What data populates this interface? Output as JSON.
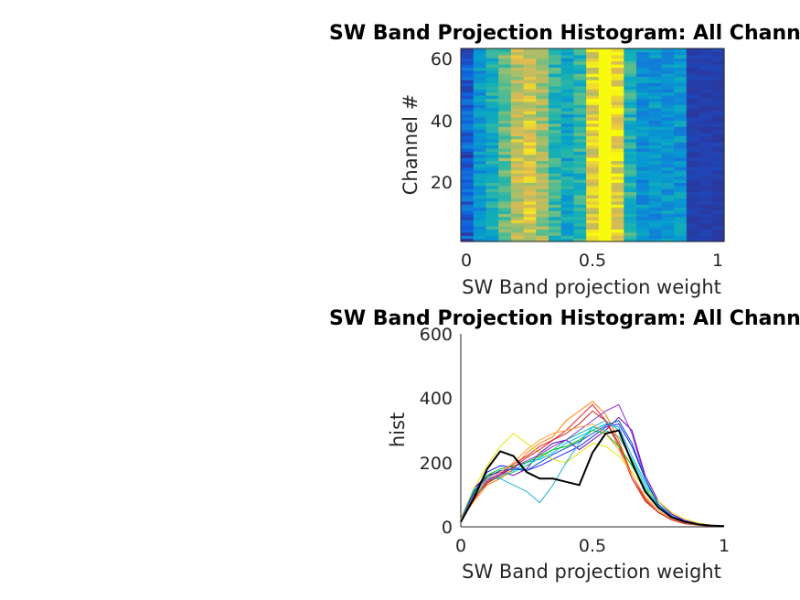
{
  "chart_data": [
    {
      "type": "heatmap",
      "title": "SW Band Projection Histogram: All Channels",
      "xlabel": "SW Band projection weight",
      "ylabel": "Channel #",
      "xlim": [
        0,
        1
      ],
      "ylim": [
        1,
        62
      ],
      "xticks": [
        "0",
        "0.5",
        "1"
      ],
      "yticks": [
        "20",
        "40",
        "60"
      ],
      "colormap": "parula",
      "rows": 62,
      "bins": 21,
      "grid": false
    },
    {
      "type": "line",
      "title": "SW Band Projection Histogram: All Channels",
      "xlabel": "SW Band projection weight",
      "ylabel": "hist",
      "xlim": [
        0,
        1
      ],
      "ylim": [
        0,
        600
      ],
      "xticks": [
        "0",
        "0.5",
        "1"
      ],
      "yticks": [
        "0",
        "200",
        "400",
        "600"
      ],
      "x": [
        0,
        0.05,
        0.1,
        0.15,
        0.2,
        0.25,
        0.3,
        0.35,
        0.4,
        0.45,
        0.5,
        0.55,
        0.6,
        0.65,
        0.7,
        0.75,
        0.8,
        0.85,
        0.9,
        0.95,
        1.0
      ],
      "series": [
        {
          "color": "#000000",
          "values": [
            15,
            90,
            180,
            235,
            220,
            170,
            150,
            150,
            140,
            130,
            230,
            290,
            300,
            200,
            110,
            60,
            30,
            15,
            8,
            4,
            2
          ]
        },
        {
          "color": "#1f1fff",
          "values": [
            20,
            110,
            170,
            190,
            185,
            175,
            190,
            210,
            230,
            250,
            280,
            310,
            320,
            250,
            150,
            70,
            35,
            18,
            8,
            4,
            2
          ]
        },
        {
          "color": "#6a00a8",
          "values": [
            25,
            120,
            160,
            170,
            160,
            180,
            230,
            260,
            270,
            240,
            270,
            300,
            340,
            300,
            160,
            80,
            40,
            20,
            10,
            5,
            2
          ]
        },
        {
          "color": "#00b4ff",
          "values": [
            20,
            100,
            150,
            160,
            175,
            200,
            210,
            230,
            260,
            280,
            300,
            320,
            310,
            220,
            140,
            70,
            35,
            15,
            8,
            4,
            2
          ]
        },
        {
          "color": "#00c8a0",
          "values": [
            18,
            95,
            140,
            155,
            170,
            190,
            215,
            240,
            270,
            290,
            310,
            300,
            280,
            210,
            130,
            65,
            32,
            15,
            8,
            4,
            2
          ]
        },
        {
          "color": "#ff7f00",
          "values": [
            22,
            80,
            130,
            150,
            180,
            230,
            260,
            280,
            330,
            360,
            390,
            350,
            270,
            160,
            90,
            50,
            25,
            12,
            6,
            3,
            1
          ]
        },
        {
          "color": "#e62020",
          "values": [
            20,
            85,
            140,
            165,
            195,
            220,
            250,
            270,
            300,
            340,
            380,
            330,
            250,
            150,
            80,
            45,
            22,
            10,
            5,
            2,
            1
          ]
        },
        {
          "color": "#e6e600",
          "values": [
            25,
            120,
            190,
            250,
            290,
            260,
            230,
            210,
            200,
            230,
            260,
            250,
            220,
            170,
            120,
            80,
            45,
            25,
            12,
            5,
            2
          ]
        },
        {
          "color": "#00c800",
          "values": [
            18,
            105,
            160,
            180,
            190,
            200,
            220,
            240,
            250,
            270,
            300,
            290,
            250,
            190,
            120,
            60,
            30,
            14,
            7,
            3,
            1
          ]
        },
        {
          "color": "#20b2d0",
          "values": [
            22,
            115,
            150,
            150,
            130,
            110,
            75,
            130,
            200,
            260,
            310,
            330,
            300,
            200,
            120,
            60,
            30,
            15,
            8,
            4,
            2
          ]
        },
        {
          "color": "#8a2be2",
          "values": [
            20,
            100,
            145,
            165,
            185,
            205,
            225,
            250,
            270,
            300,
            330,
            360,
            380,
            290,
            150,
            70,
            32,
            15,
            7,
            3,
            1
          ]
        },
        {
          "color": "#c82020",
          "values": [
            18,
            90,
            135,
            160,
            185,
            215,
            240,
            270,
            290,
            320,
            360,
            330,
            260,
            160,
            85,
            45,
            22,
            10,
            5,
            2,
            1
          ]
        },
        {
          "color": "#0050c8",
          "values": [
            20,
            110,
            155,
            175,
            180,
            175,
            200,
            225,
            245,
            265,
            290,
            315,
            330,
            260,
            150,
            70,
            33,
            16,
            8,
            4,
            2
          ]
        },
        {
          "color": "#ff9f40",
          "values": [
            20,
            95,
            150,
            170,
            200,
            240,
            270,
            290,
            300,
            310,
            320,
            290,
            240,
            160,
            95,
            50,
            25,
            12,
            6,
            3,
            1
          ]
        }
      ]
    }
  ]
}
